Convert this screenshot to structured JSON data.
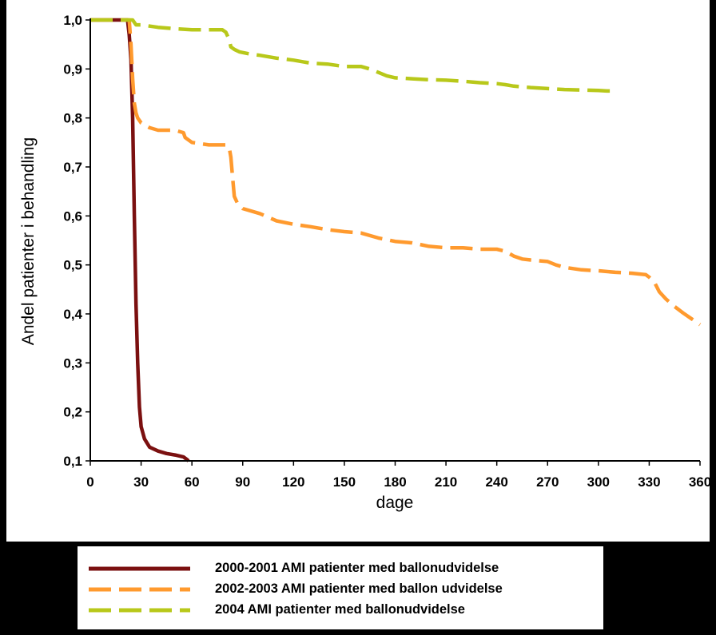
{
  "chart_data": {
    "type": "line",
    "title": "",
    "xlabel": "dage",
    "ylabel": "Andel patienter i behandling",
    "xlim": [
      0,
      360
    ],
    "ylim": [
      0.1,
      1.0
    ],
    "x_ticks": [
      0,
      30,
      60,
      90,
      120,
      150,
      180,
      210,
      240,
      270,
      300,
      330,
      360
    ],
    "x_tick_labels": [
      "0",
      "30",
      "60",
      "90",
      "120",
      "150",
      "180",
      "210",
      "240",
      "270",
      "300",
      "330",
      "360"
    ],
    "y_ticks": [
      0.1,
      0.2,
      0.3,
      0.4,
      0.5,
      0.6,
      0.7,
      0.8,
      0.9,
      1.0
    ],
    "y_tick_labels": [
      "0,1",
      "0,2",
      "0,3",
      "0,4",
      "0,5",
      "0,6",
      "0,7",
      "0,8",
      "0,9",
      "1,0"
    ],
    "grid": false,
    "legend_position": "bottom",
    "series": [
      {
        "name": "2000-2001 AMI patienter med ballonudvidelse",
        "color": "#7B1010",
        "style": "solid",
        "x": [
          0,
          22,
          23,
          24,
          25,
          26,
          27,
          28,
          29,
          30,
          32,
          35,
          40,
          45,
          50,
          55,
          57,
          58
        ],
        "y": [
          1.0,
          1.0,
          0.97,
          0.92,
          0.8,
          0.6,
          0.42,
          0.3,
          0.21,
          0.17,
          0.145,
          0.128,
          0.12,
          0.115,
          0.112,
          0.108,
          0.103,
          0.1
        ]
      },
      {
        "name": "2002-2003 AMI patienter med ballon udvidelse",
        "color": "#FF9A2E",
        "style": "dashed",
        "x": [
          0,
          23,
          24,
          25,
          26,
          27,
          28,
          30,
          35,
          40,
          50,
          55,
          56,
          60,
          70,
          80,
          82,
          83,
          84,
          85,
          87,
          90,
          100,
          110,
          120,
          130,
          140,
          150,
          160,
          170,
          180,
          190,
          200,
          210,
          220,
          230,
          240,
          245,
          250,
          255,
          260,
          270,
          275,
          280,
          290,
          300,
          310,
          320,
          328,
          330,
          333,
          336,
          340,
          345,
          350,
          355,
          360
        ],
        "y": [
          1.0,
          1.0,
          0.95,
          0.88,
          0.83,
          0.81,
          0.8,
          0.79,
          0.78,
          0.775,
          0.775,
          0.77,
          0.76,
          0.75,
          0.745,
          0.745,
          0.74,
          0.72,
          0.68,
          0.64,
          0.625,
          0.615,
          0.605,
          0.59,
          0.583,
          0.578,
          0.572,
          0.568,
          0.565,
          0.555,
          0.548,
          0.545,
          0.538,
          0.535,
          0.535,
          0.532,
          0.532,
          0.528,
          0.518,
          0.512,
          0.51,
          0.507,
          0.5,
          0.495,
          0.49,
          0.488,
          0.485,
          0.483,
          0.48,
          0.475,
          0.465,
          0.445,
          0.43,
          0.415,
          0.402,
          0.39,
          0.378
        ]
      },
      {
        "name": "2004 AMI patienter med ballonudvidelse",
        "color": "#B8C81A",
        "style": "dashed",
        "x": [
          0,
          25,
          27,
          30,
          40,
          50,
          60,
          70,
          78,
          80,
          82,
          83,
          85,
          88,
          95,
          100,
          110,
          120,
          130,
          140,
          150,
          160,
          165,
          170,
          175,
          180,
          190,
          200,
          210,
          220,
          230,
          240,
          245,
          250,
          260,
          270,
          280,
          290,
          300,
          305,
          310
        ],
        "y": [
          1.0,
          1.0,
          0.99,
          0.99,
          0.985,
          0.982,
          0.98,
          0.98,
          0.98,
          0.975,
          0.96,
          0.945,
          0.94,
          0.935,
          0.93,
          0.928,
          0.922,
          0.918,
          0.912,
          0.91,
          0.905,
          0.905,
          0.9,
          0.893,
          0.886,
          0.882,
          0.88,
          0.878,
          0.877,
          0.875,
          0.872,
          0.87,
          0.868,
          0.865,
          0.862,
          0.86,
          0.858,
          0.857,
          0.856,
          0.855,
          0.855
        ]
      }
    ]
  }
}
